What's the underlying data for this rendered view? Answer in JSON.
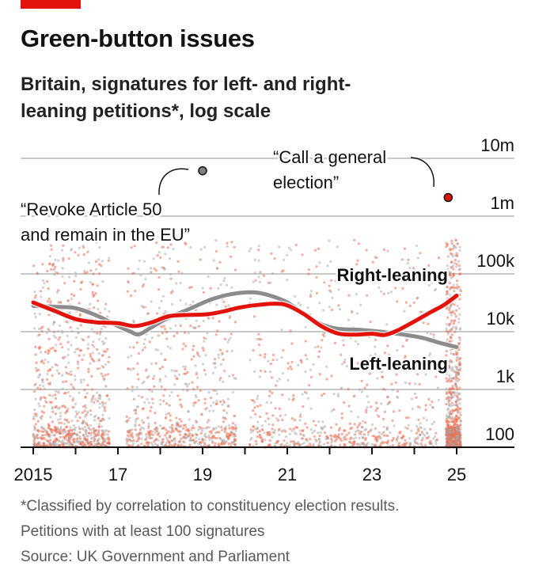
{
  "header": {
    "title": "Green-button issues",
    "subtitle": "Britain, signatures for left- and right-leaning petitions*, log scale"
  },
  "footnotes": [
    "*Classified by correlation to constituency election results.",
    "Petitions with at least 100 signatures",
    "Source: UK Government and Parliament"
  ],
  "colors": {
    "brand": "#e3120b",
    "right_line": "#e3120b",
    "left_line": "#8c8c8c",
    "grid": "#c8c8c8",
    "axis": "#121212",
    "dot_red": "#f0694a",
    "dot_grey": "#a6a6a6"
  },
  "chart_data": {
    "type": "scatter",
    "log_scale_y": true,
    "xlim": [
      2014.7,
      2025.9
    ],
    "ylim": [
      100,
      10000000
    ],
    "y_ticks": [
      100,
      1000,
      10000,
      100000,
      1000000,
      10000000
    ],
    "y_tick_labels": [
      "100",
      "1k",
      "10k",
      "100k",
      "1m",
      "10m"
    ],
    "x_ticks": [
      2015,
      2017,
      2019,
      2021,
      2023,
      2025
    ],
    "x_tick_labels": [
      "2015",
      "17",
      "19",
      "21",
      "23",
      "25"
    ],
    "x_minor_ticks": [
      2015,
      2016,
      2017,
      2018,
      2019,
      2020,
      2021,
      2022,
      2023,
      2024,
      2025
    ],
    "grid": "horizontal",
    "series": [
      {
        "name": "Right-leaning",
        "points": [
          [
            2015.0,
            32000
          ],
          [
            2015.5,
            23000
          ],
          [
            2016.0,
            16500
          ],
          [
            2016.5,
            14500
          ],
          [
            2017.0,
            14000
          ],
          [
            2017.4,
            12500
          ],
          [
            2017.8,
            14500
          ],
          [
            2018.2,
            18500
          ],
          [
            2018.7,
            19500
          ],
          [
            2019.1,
            20000
          ],
          [
            2019.5,
            22500
          ],
          [
            2019.8,
            25500
          ],
          [
            2020.2,
            28500
          ],
          [
            2020.7,
            30500
          ],
          [
            2021.0,
            28500
          ],
          [
            2021.4,
            20000
          ],
          [
            2021.8,
            12500
          ],
          [
            2022.2,
            9300
          ],
          [
            2022.6,
            8900
          ],
          [
            2023.0,
            9200
          ],
          [
            2023.3,
            8800
          ],
          [
            2023.6,
            10500
          ],
          [
            2024.0,
            15000
          ],
          [
            2024.4,
            22000
          ],
          [
            2024.7,
            29000
          ],
          [
            2025.0,
            42000
          ]
        ]
      },
      {
        "name": "Left-leaning",
        "points": [
          [
            2015.0,
            28000
          ],
          [
            2015.5,
            27000
          ],
          [
            2016.0,
            25500
          ],
          [
            2016.5,
            19000
          ],
          [
            2017.0,
            12500
          ],
          [
            2017.3,
            10000
          ],
          [
            2017.5,
            9000
          ],
          [
            2017.8,
            12000
          ],
          [
            2018.2,
            17500
          ],
          [
            2018.7,
            25000
          ],
          [
            2019.2,
            36000
          ],
          [
            2019.7,
            45000
          ],
          [
            2020.2,
            48000
          ],
          [
            2020.6,
            42000
          ],
          [
            2021.0,
            32000
          ],
          [
            2021.4,
            20000
          ],
          [
            2021.8,
            13500
          ],
          [
            2022.2,
            11200
          ],
          [
            2022.7,
            10800
          ],
          [
            2023.2,
            10000
          ],
          [
            2023.7,
            9000
          ],
          [
            2024.2,
            7800
          ],
          [
            2024.6,
            6400
          ],
          [
            2025.0,
            5400
          ]
        ]
      }
    ],
    "annotations": [
      {
        "text": "“Revoke Article 50 and remain in the EU”",
        "lines": [
          "“Revoke Article 50",
          "and remain in the EU”"
        ],
        "x": 2019.0,
        "y": 6100000
      },
      {
        "text": "“Call a general election”",
        "lines": [
          "“Call a general",
          "election”"
        ],
        "x": 2024.8,
        "y": 2100000
      }
    ]
  }
}
